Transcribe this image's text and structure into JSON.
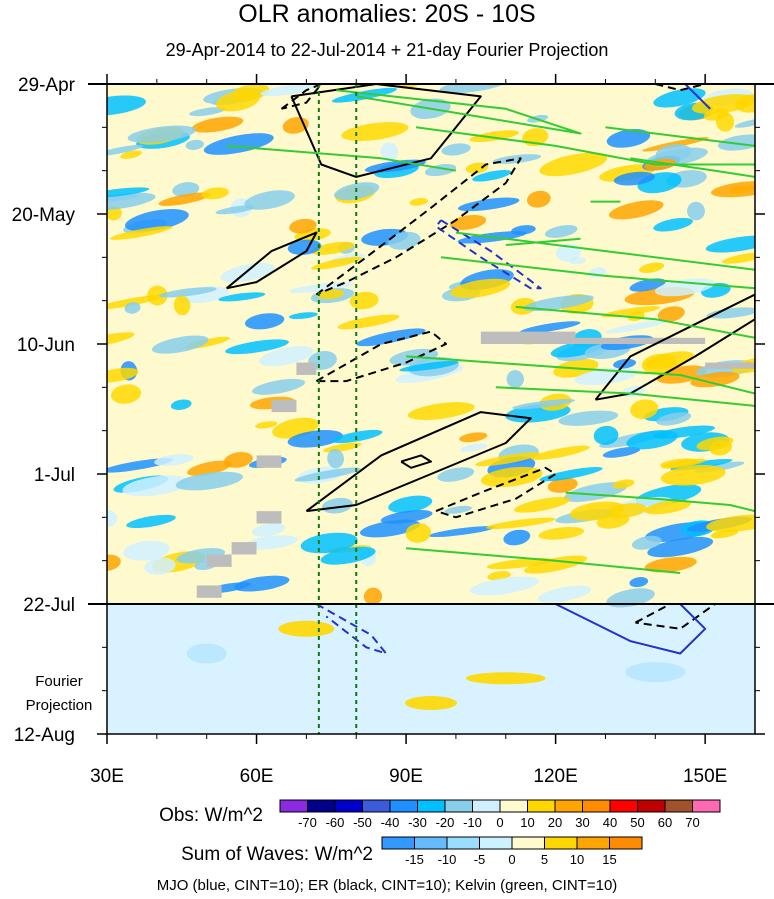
{
  "title": "OLR anomalies: 20S - 10S",
  "subtitle": "29-Apr-2014 to 22-Jul-2014 + 21-day Fourier Projection",
  "footer": "MJO (blue, CINT=10); ER (black, CINT=10); Kelvin (green, CINT=10)",
  "projection_label_1": "Fourier",
  "projection_label_2": "Projection",
  "chart_data": {
    "type": "heatmap",
    "x_axis": {
      "ticks": [
        30,
        60,
        90,
        120,
        150
      ],
      "tick_labels": [
        "30E",
        "60E",
        "90E",
        "120E",
        "150E"
      ],
      "range": [
        30,
        160
      ]
    },
    "y_axis": {
      "ticks": [
        "29-Apr",
        "20-May",
        "10-Jun",
        "1-Jul",
        "22-Jul",
        "12-Aug"
      ],
      "range_days": [
        0,
        105
      ],
      "tick_days": [
        0,
        21,
        42,
        63,
        84,
        105
      ]
    },
    "obs_end_day": 84,
    "reference_longitudes": [
      72.5,
      80
    ],
    "legend_obs": {
      "label": "Obs: W/m^2",
      "levels": [
        -70,
        -60,
        -50,
        -40,
        -30,
        -20,
        -10,
        0,
        10,
        20,
        30,
        40,
        50,
        60,
        70
      ],
      "colors": [
        "#8a2be2",
        "#00008b",
        "#0000cd",
        "#3b5bdb",
        "#1e90ff",
        "#00bfff",
        "#87ceeb",
        "#d0f0ff",
        "#fffacd",
        "#ffd700",
        "#ffa500",
        "#ff8c00",
        "#ff0000",
        "#c00000",
        "#a0522d",
        "#ff69b4"
      ]
    },
    "legend_waves": {
      "label": "Sum of Waves: W/m^2",
      "levels": [
        -15,
        -10,
        -5,
        0,
        5,
        10,
        15
      ],
      "colors": [
        "#3399ff",
        "#66bbff",
        "#99ddff",
        "#ccf2ff",
        "#fffacd",
        "#ffd700",
        "#ffa500",
        "#ff8c00"
      ]
    },
    "contours": [
      {
        "wave": "ER",
        "color": "#000000",
        "dash": false,
        "points": [
          [
            67,
            2
          ],
          [
            84,
            0
          ],
          [
            105,
            2
          ],
          [
            95,
            12
          ],
          [
            80,
            15
          ],
          [
            73,
            13
          ],
          [
            67,
            2
          ]
        ]
      },
      {
        "wave": "ER",
        "color": "#000000",
        "dash": false,
        "points": [
          [
            54,
            33
          ],
          [
            63,
            27
          ],
          [
            72,
            24
          ],
          [
            70,
            27
          ],
          [
            60,
            32
          ],
          [
            54,
            33
          ]
        ]
      },
      {
        "wave": "ER",
        "color": "#000000",
        "dash": false,
        "points": [
          [
            70,
            69
          ],
          [
            85,
            60
          ],
          [
            105,
            53
          ],
          [
            115,
            54
          ],
          [
            110,
            58
          ],
          [
            95,
            63
          ],
          [
            80,
            68
          ],
          [
            70,
            69
          ]
        ]
      },
      {
        "wave": "ER",
        "color": "#000000",
        "dash": false,
        "points": [
          [
            89,
            61
          ],
          [
            93,
            60
          ],
          [
            95,
            61
          ],
          [
            91,
            62
          ],
          [
            89,
            61
          ]
        ]
      },
      {
        "wave": "ER",
        "color": "#000000",
        "dash": false,
        "points": [
          [
            128,
            51
          ],
          [
            135,
            44
          ],
          [
            150,
            38
          ],
          [
            160,
            34
          ],
          [
            160,
            38
          ],
          [
            148,
            44
          ],
          [
            135,
            50
          ],
          [
            128,
            51
          ]
        ]
      },
      {
        "wave": "ER",
        "color": "#000000",
        "dash": true,
        "points": [
          [
            65,
            4
          ],
          [
            70,
            1
          ],
          [
            73,
            0
          ],
          [
            70,
            3
          ],
          [
            65,
            4
          ]
        ]
      },
      {
        "wave": "ER",
        "color": "#000000",
        "dash": true,
        "points": [
          [
            72,
            34
          ],
          [
            82,
            28
          ],
          [
            95,
            20
          ],
          [
            106,
            13
          ],
          [
            113,
            12
          ],
          [
            110,
            16
          ],
          [
            100,
            22
          ],
          [
            88,
            28
          ],
          [
            78,
            32
          ],
          [
            72,
            34
          ]
        ]
      },
      {
        "wave": "ER",
        "color": "#000000",
        "dash": true,
        "points": [
          [
            72,
            48
          ],
          [
            85,
            42
          ],
          [
            95,
            40
          ],
          [
            98,
            42
          ],
          [
            90,
            45
          ],
          [
            78,
            48
          ],
          [
            72,
            48
          ]
        ]
      },
      {
        "wave": "ER",
        "color": "#000000",
        "dash": true,
        "points": [
          [
            96,
            69
          ],
          [
            105,
            66
          ],
          [
            118,
            62
          ],
          [
            120,
            63
          ],
          [
            112,
            67
          ],
          [
            100,
            70
          ],
          [
            96,
            69
          ]
        ]
      },
      {
        "wave": "ER",
        "color": "#000000",
        "dash": true,
        "points": [
          [
            136,
            87
          ],
          [
            143,
            84
          ],
          [
            152,
            84
          ],
          [
            145,
            88
          ],
          [
            136,
            87
          ]
        ]
      },
      {
        "wave": "ER",
        "color": "#000000",
        "dash": true,
        "points": [
          [
            140,
            0
          ],
          [
            145,
            1
          ],
          [
            150,
            0
          ]
        ]
      },
      {
        "wave": "MJO",
        "color": "#2233cc",
        "dash": true,
        "points": [
          [
            97,
            22
          ],
          [
            107,
            27
          ],
          [
            117,
            33
          ],
          [
            115,
            33
          ],
          [
            105,
            28
          ],
          [
            96,
            23
          ],
          [
            97,
            22
          ]
        ]
      },
      {
        "wave": "MJO",
        "color": "#2233cc",
        "dash": true,
        "points": [
          [
            72,
            84
          ],
          [
            83,
            89
          ],
          [
            86,
            92
          ],
          [
            82,
            91
          ],
          [
            74,
            86
          ]
        ]
      },
      {
        "wave": "MJO",
        "color": "#2233cc",
        "dash": false,
        "points": [
          [
            120,
            84
          ],
          [
            135,
            90
          ],
          [
            145,
            92
          ],
          [
            150,
            88
          ],
          [
            145,
            84
          ]
        ]
      },
      {
        "wave": "MJO",
        "color": "#2233cc",
        "dash": false,
        "points": [
          [
            146,
            0
          ],
          [
            151,
            4
          ]
        ]
      },
      {
        "wave": "Kelvin",
        "color": "#33cc33",
        "dash": false,
        "points": [
          [
            76,
            1
          ],
          [
            110,
            4
          ],
          [
            125,
            8
          ],
          [
            110,
            6
          ],
          [
            80,
            2
          ]
        ]
      },
      {
        "wave": "Kelvin",
        "color": "#33cc33",
        "dash": false,
        "points": [
          [
            92,
            7
          ],
          [
            120,
            10
          ],
          [
            140,
            13
          ],
          [
            160,
            13
          ]
        ]
      },
      {
        "wave": "Kelvin",
        "color": "#33cc33",
        "dash": false,
        "points": [
          [
            130,
            7
          ],
          [
            150,
            9
          ],
          [
            160,
            10
          ]
        ]
      },
      {
        "wave": "Kelvin",
        "color": "#33cc33",
        "dash": false,
        "points": [
          [
            54,
            10
          ],
          [
            85,
            12
          ],
          [
            100,
            14
          ]
        ]
      },
      {
        "wave": "Kelvin",
        "color": "#33cc33",
        "dash": false,
        "points": [
          [
            135,
            12
          ],
          [
            152,
            14
          ],
          [
            160,
            15
          ]
        ]
      },
      {
        "wave": "Kelvin",
        "color": "#33cc33",
        "dash": false,
        "points": [
          [
            127,
            19
          ],
          [
            133,
            19
          ]
        ]
      },
      {
        "wave": "Kelvin",
        "color": "#33cc33",
        "dash": false,
        "points": [
          [
            100,
            24
          ],
          [
            130,
            27
          ],
          [
            160,
            30
          ]
        ]
      },
      {
        "wave": "Kelvin",
        "color": "#33cc33",
        "dash": false,
        "points": [
          [
            110,
            26
          ],
          [
            125,
            25
          ]
        ]
      },
      {
        "wave": "Kelvin",
        "color": "#33cc33",
        "dash": false,
        "points": [
          [
            97,
            28
          ],
          [
            130,
            31
          ],
          [
            160,
            33
          ]
        ]
      },
      {
        "wave": "Kelvin",
        "color": "#33cc33",
        "dash": false,
        "points": [
          [
            112,
            36
          ],
          [
            140,
            38
          ],
          [
            160,
            41
          ]
        ]
      },
      {
        "wave": "Kelvin",
        "color": "#33cc33",
        "dash": false,
        "points": [
          [
            90,
            44
          ],
          [
            125,
            46
          ],
          [
            145,
            47
          ],
          [
            160,
            50
          ]
        ]
      },
      {
        "wave": "Kelvin",
        "color": "#33cc33",
        "dash": false,
        "points": [
          [
            108,
            49
          ],
          [
            135,
            50
          ],
          [
            160,
            52
          ]
        ]
      },
      {
        "wave": "Kelvin",
        "color": "#33cc33",
        "dash": false,
        "points": [
          [
            122,
            66
          ],
          [
            140,
            67
          ],
          [
            155,
            68
          ],
          [
            160,
            69
          ]
        ]
      },
      {
        "wave": "Kelvin",
        "color": "#33cc33",
        "dash": false,
        "points": [
          [
            90,
            75
          ],
          [
            120,
            77
          ],
          [
            145,
            79
          ]
        ]
      }
    ],
    "missing_data": [
      [
        105,
        40,
        124,
        42
      ],
      [
        124,
        41,
        150,
        42
      ],
      [
        150,
        45,
        160,
        46
      ],
      [
        68,
        45,
        72,
        47
      ],
      [
        63,
        51,
        68,
        53
      ],
      [
        60,
        60,
        65,
        62
      ],
      [
        60,
        69,
        65,
        71
      ],
      [
        55,
        74,
        60,
        76
      ],
      [
        50,
        76,
        55,
        78
      ],
      [
        48,
        81,
        53,
        83
      ]
    ]
  }
}
